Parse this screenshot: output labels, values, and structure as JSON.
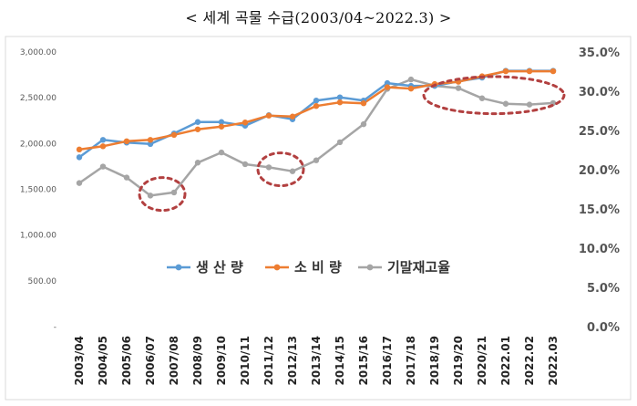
{
  "title": "< 세계 곡물 수급(2003/04~2022.3) >",
  "chart_data": {
    "type": "line",
    "title": "< 세계 곡물 수급(2003/04~2022.3) >",
    "categories": [
      "2003/04",
      "2004/05",
      "2005/06",
      "2006/07",
      "2007/08",
      "2008/09",
      "2009/10",
      "2010/11",
      "2011/12",
      "2012/13",
      "2013/14",
      "2014/15",
      "2015/16",
      "2016/17",
      "2017/18",
      "2018/19",
      "2019/20",
      "2020/21",
      "2022/01",
      "2022/02",
      "2022/03"
    ],
    "category_labels": [
      "2003/04",
      "2004/05",
      "2005/06",
      "2006/07",
      "2007/08",
      "2008/09",
      "2009/10",
      "2010/11",
      "2011/12",
      "2012/13",
      "2013/14",
      "2014/15",
      "2015/16",
      "2016/17",
      "2017/18",
      "2018/19",
      "2019/20",
      "2020/21",
      "2022.01",
      "2022.02",
      "2022.03"
    ],
    "y_left": {
      "ylim": [
        0,
        3000
      ],
      "ticks": [
        0,
        500,
        1000,
        1500,
        2000,
        2500,
        3000
      ],
      "tick_labels": [
        "-",
        "500.00",
        "1,000.00",
        "1,500.00",
        "2,000.00",
        "2,500.00",
        "3,000.00"
      ]
    },
    "y_right": {
      "ylim": [
        0,
        35
      ],
      "ticks": [
        0,
        5,
        10,
        15,
        20,
        25,
        30,
        35
      ],
      "tick_labels": [
        "0.0%",
        "5.0%",
        "10.0%",
        "15.0%",
        "20.0%",
        "25.0%",
        "30.0%",
        "35.0%"
      ]
    },
    "series": [
      {
        "name": "생 산 량",
        "axis": "left",
        "color": "#5b9bd5",
        "values": [
          1850,
          2040,
          2010,
          1995,
          2110,
          2235,
          2235,
          2195,
          2310,
          2265,
          2470,
          2505,
          2470,
          2660,
          2630,
          2630,
          2680,
          2720,
          2795,
          2795,
          2795
        ]
      },
      {
        "name": "소 비 량",
        "axis": "left",
        "color": "#ed7d31",
        "values": [
          1935,
          1970,
          2025,
          2040,
          2095,
          2155,
          2185,
          2230,
          2305,
          2295,
          2410,
          2450,
          2440,
          2615,
          2600,
          2650,
          2675,
          2735,
          2790,
          2790,
          2790
        ]
      },
      {
        "name": "기말재고율",
        "axis": "right",
        "color": "#a5a5a5",
        "values": [
          18.3,
          20.4,
          19.0,
          16.7,
          17.1,
          20.9,
          22.2,
          20.7,
          20.3,
          19.8,
          21.2,
          23.5,
          25.8,
          30.3,
          31.5,
          30.7,
          30.4,
          29.1,
          28.4,
          28.3,
          28.5
        ]
      }
    ],
    "legend": {
      "placement": "center-bottom",
      "entries": [
        "생 산 량",
        "소 비 량",
        "기말재고율"
      ]
    },
    "annotations": [
      {
        "shape": "dashed-ellipse",
        "color": "#b24040",
        "around": [
          "2006/07",
          "2007/08"
        ],
        "series": "기말재고율"
      },
      {
        "shape": "dashed-ellipse",
        "color": "#b24040",
        "around": [
          "2011/12",
          "2012/13"
        ],
        "series": "기말재고율"
      },
      {
        "shape": "dashed-ellipse",
        "color": "#b24040",
        "around": [
          "2018/19",
          "2022/03"
        ],
        "series": "기말재고율"
      }
    ],
    "grid": false
  }
}
